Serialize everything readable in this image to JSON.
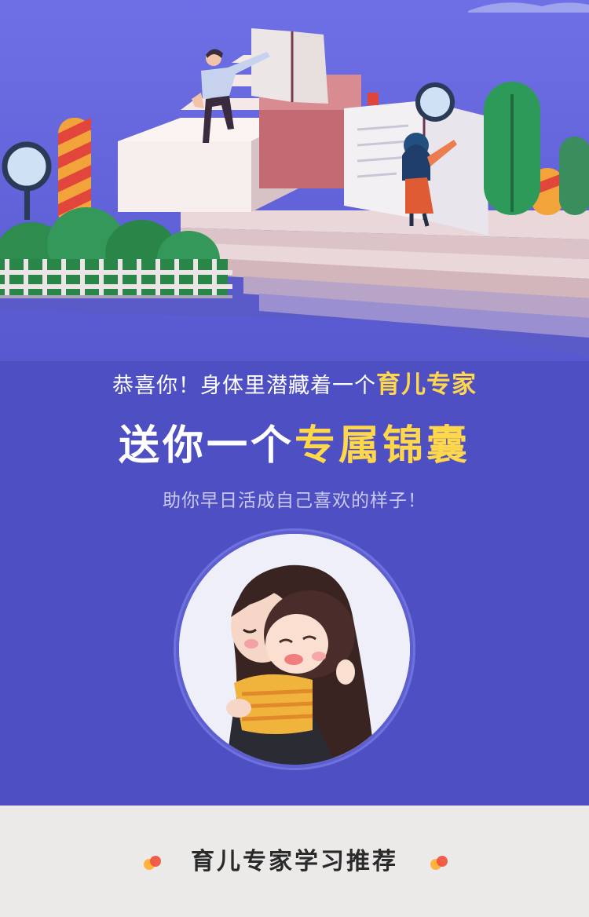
{
  "headline": {
    "line1_prefix": "恭喜你！身体里潜藏着一个",
    "line1_highlight": "育儿专家",
    "line2_prefix": "送你一个",
    "line2_highlight": "专属锦囊",
    "line3": "助你早日活成自己喜欢的样子！"
  },
  "footer": {
    "title": "育儿专家学习推荐"
  },
  "colors": {
    "background": "#4f4fc4",
    "highlight": "#ffd74a",
    "footer_bg": "#ece9e9",
    "dot_orange": "#ffb23e",
    "dot_red": "#f0513f"
  }
}
